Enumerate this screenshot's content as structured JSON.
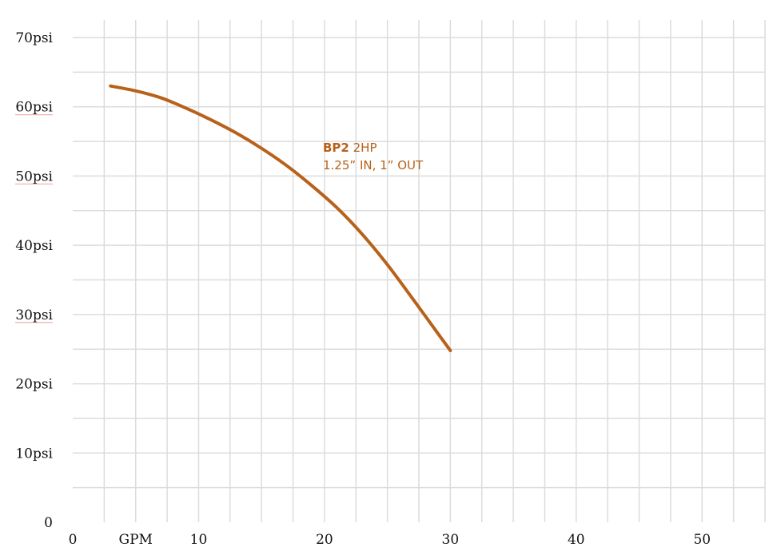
{
  "chart_data": {
    "type": "line",
    "x_ticks": [
      {
        "value": 0,
        "label": "0"
      },
      {
        "value": 5,
        "label": "GPM"
      },
      {
        "value": 10,
        "label": "10"
      },
      {
        "value": 20,
        "label": "20"
      },
      {
        "value": 30,
        "label": "30"
      },
      {
        "value": 40,
        "label": "40"
      },
      {
        "value": 50,
        "label": "50"
      }
    ],
    "y_ticks": [
      {
        "value": 0,
        "label": "0"
      },
      {
        "value": 10,
        "label": "10psi"
      },
      {
        "value": 20,
        "label": "20psi"
      },
      {
        "value": 30,
        "label": "30psi"
      },
      {
        "value": 40,
        "label": "40psi"
      },
      {
        "value": 50,
        "label": "50psi"
      },
      {
        "value": 60,
        "label": "60psi"
      },
      {
        "value": 70,
        "label": "70psi"
      }
    ],
    "xlim": [
      0,
      55
    ],
    "ylim": [
      0,
      70
    ],
    "grid": true,
    "series": [
      {
        "color": "#b8611a",
        "points": [
          [
            3,
            63
          ],
          [
            5,
            62.3
          ],
          [
            7,
            61.3
          ],
          [
            9,
            59.8
          ],
          [
            11,
            58.1
          ],
          [
            13,
            56.2
          ],
          [
            15,
            54.0
          ],
          [
            17,
            51.5
          ],
          [
            19,
            48.6
          ],
          [
            21,
            45.4
          ],
          [
            23,
            41.6
          ],
          [
            25,
            37.2
          ],
          [
            27,
            32.3
          ],
          [
            29,
            27.3
          ],
          [
            30,
            24.8
          ]
        ]
      }
    ],
    "annotation": {
      "bold": "BP2",
      "line1": " 2HP",
      "line2": "1.25” IN, 1” OUT"
    }
  }
}
